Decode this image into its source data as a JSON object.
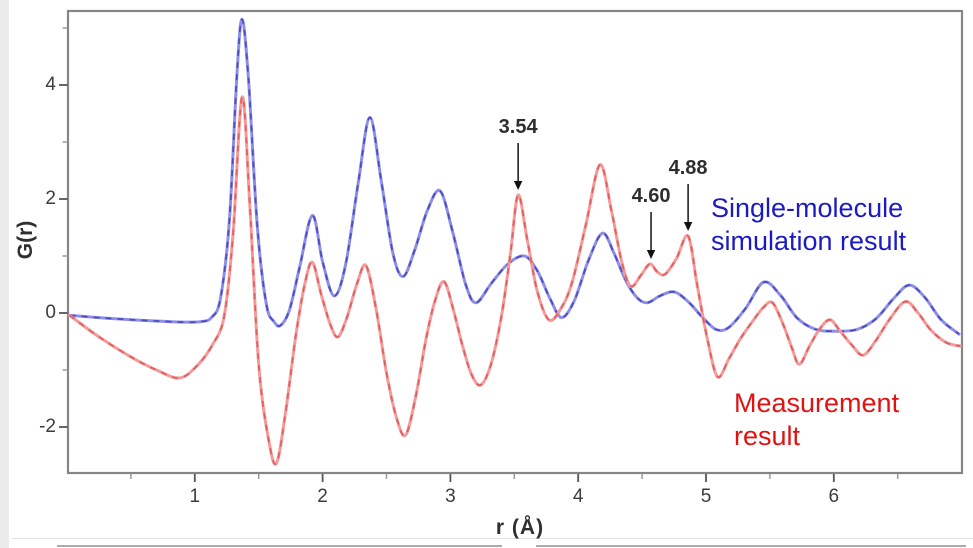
{
  "chart_data": {
    "type": "line",
    "title": "",
    "xlabel": "r (Å)",
    "ylabel": "G(r)",
    "xlim": [
      0,
      7
    ],
    "ylim": [
      -2.8,
      5.3
    ],
    "grid": false,
    "x_ticks_major": [
      1,
      2,
      3,
      4,
      5,
      6
    ],
    "x_ticks_minor": [
      0.5,
      1.5,
      2.5,
      3.5,
      4.5,
      5.5,
      6.5
    ],
    "y_ticks_major": [
      4,
      2,
      0,
      -2
    ],
    "y_ticks_minor": [
      5,
      3,
      1,
      -1
    ],
    "legend_position": "inside-right",
    "annotations": [
      {
        "label": "3.54",
        "x": 3.53,
        "y": 2.07
      },
      {
        "label": "4.60",
        "x": 4.57,
        "y": 0.86
      },
      {
        "label": "4.88",
        "x": 4.86,
        "y": 1.35
      }
    ],
    "series": [
      {
        "id": "simulation",
        "name": "Single-molecule simulation result",
        "base_color": "#8e8ee6",
        "dash_color": "#4a4ac5",
        "points": [
          [
            0.02,
            -0.04
          ],
          [
            0.3,
            -0.09
          ],
          [
            0.6,
            -0.13
          ],
          [
            0.9,
            -0.16
          ],
          [
            1.05,
            -0.15
          ],
          [
            1.13,
            -0.08
          ],
          [
            1.2,
            0.25
          ],
          [
            1.27,
            1.6
          ],
          [
            1.33,
            4.2
          ],
          [
            1.37,
            5.15
          ],
          [
            1.42,
            4.1
          ],
          [
            1.49,
            1.5
          ],
          [
            1.56,
            0.15
          ],
          [
            1.62,
            -0.15
          ],
          [
            1.67,
            -0.22
          ],
          [
            1.74,
            0.05
          ],
          [
            1.82,
            0.8
          ],
          [
            1.92,
            1.71
          ],
          [
            2.0,
            0.9
          ],
          [
            2.09,
            0.3
          ],
          [
            2.18,
            0.85
          ],
          [
            2.28,
            2.3
          ],
          [
            2.37,
            3.43
          ],
          [
            2.46,
            2.3
          ],
          [
            2.55,
            1.05
          ],
          [
            2.63,
            0.64
          ],
          [
            2.72,
            1.1
          ],
          [
            2.82,
            1.8
          ],
          [
            2.92,
            2.14
          ],
          [
            3.02,
            1.4
          ],
          [
            3.12,
            0.5
          ],
          [
            3.2,
            0.18
          ],
          [
            3.32,
            0.52
          ],
          [
            3.45,
            0.86
          ],
          [
            3.58,
            1.0
          ],
          [
            3.68,
            0.74
          ],
          [
            3.78,
            0.25
          ],
          [
            3.87,
            -0.08
          ],
          [
            3.97,
            0.22
          ],
          [
            4.08,
            0.92
          ],
          [
            4.19,
            1.4
          ],
          [
            4.28,
            1.05
          ],
          [
            4.37,
            0.58
          ],
          [
            4.46,
            0.27
          ],
          [
            4.54,
            0.18
          ],
          [
            4.64,
            0.3
          ],
          [
            4.75,
            0.37
          ],
          [
            4.86,
            0.2
          ],
          [
            4.97,
            -0.07
          ],
          [
            5.08,
            -0.29
          ],
          [
            5.18,
            -0.25
          ],
          [
            5.31,
            0.08
          ],
          [
            5.45,
            0.54
          ],
          [
            5.58,
            0.32
          ],
          [
            5.71,
            -0.08
          ],
          [
            5.85,
            -0.28
          ],
          [
            6.0,
            -0.32
          ],
          [
            6.18,
            -0.29
          ],
          [
            6.33,
            -0.1
          ],
          [
            6.47,
            0.26
          ],
          [
            6.59,
            0.49
          ],
          [
            6.71,
            0.28
          ],
          [
            6.84,
            -0.12
          ],
          [
            6.98,
            -0.37
          ]
        ]
      },
      {
        "id": "measurement",
        "name": "Measurement result",
        "base_color": "#f49a9a",
        "dash_color": "#e25d5d",
        "points": [
          [
            0.02,
            -0.04
          ],
          [
            0.25,
            -0.42
          ],
          [
            0.5,
            -0.77
          ],
          [
            0.7,
            -1.0
          ],
          [
            0.88,
            -1.14
          ],
          [
            1.02,
            -0.92
          ],
          [
            1.14,
            -0.55
          ],
          [
            1.23,
            -0.05
          ],
          [
            1.3,
            1.4
          ],
          [
            1.37,
            3.79
          ],
          [
            1.43,
            1.9
          ],
          [
            1.5,
            -0.9
          ],
          [
            1.58,
            -2.25
          ],
          [
            1.64,
            -2.63
          ],
          [
            1.71,
            -1.75
          ],
          [
            1.79,
            -0.4
          ],
          [
            1.86,
            0.5
          ],
          [
            1.92,
            0.89
          ],
          [
            1.99,
            0.32
          ],
          [
            2.06,
            -0.2
          ],
          [
            2.12,
            -0.42
          ],
          [
            2.19,
            -0.08
          ],
          [
            2.27,
            0.52
          ],
          [
            2.34,
            0.83
          ],
          [
            2.42,
            0.05
          ],
          [
            2.5,
            -1.05
          ],
          [
            2.58,
            -1.85
          ],
          [
            2.65,
            -2.14
          ],
          [
            2.73,
            -1.45
          ],
          [
            2.81,
            -0.45
          ],
          [
            2.88,
            0.22
          ],
          [
            2.95,
            0.55
          ],
          [
            3.02,
            0.08
          ],
          [
            3.1,
            -0.62
          ],
          [
            3.17,
            -1.1
          ],
          [
            3.24,
            -1.26
          ],
          [
            3.32,
            -0.88
          ],
          [
            3.4,
            -0.05
          ],
          [
            3.47,
            1.05
          ],
          [
            3.53,
            2.07
          ],
          [
            3.6,
            1.3
          ],
          [
            3.68,
            0.38
          ],
          [
            3.77,
            -0.12
          ],
          [
            3.86,
            0.06
          ],
          [
            3.95,
            0.52
          ],
          [
            4.06,
            1.55
          ],
          [
            4.17,
            2.6
          ],
          [
            4.26,
            1.8
          ],
          [
            4.34,
            0.9
          ],
          [
            4.41,
            0.47
          ],
          [
            4.49,
            0.66
          ],
          [
            4.56,
            0.86
          ],
          [
            4.62,
            0.72
          ],
          [
            4.68,
            0.68
          ],
          [
            4.77,
            0.96
          ],
          [
            4.86,
            1.35
          ],
          [
            4.93,
            0.5
          ],
          [
            5.01,
            -0.45
          ],
          [
            5.09,
            -1.12
          ],
          [
            5.18,
            -0.8
          ],
          [
            5.27,
            -0.45
          ],
          [
            5.36,
            -0.16
          ],
          [
            5.45,
            0.1
          ],
          [
            5.52,
            0.18
          ],
          [
            5.6,
            -0.18
          ],
          [
            5.67,
            -0.6
          ],
          [
            5.73,
            -0.9
          ],
          [
            5.81,
            -0.58
          ],
          [
            5.89,
            -0.28
          ],
          [
            5.97,
            -0.12
          ],
          [
            6.05,
            -0.32
          ],
          [
            6.14,
            -0.56
          ],
          [
            6.23,
            -0.74
          ],
          [
            6.33,
            -0.48
          ],
          [
            6.44,
            -0.1
          ],
          [
            6.56,
            0.2
          ],
          [
            6.66,
            0.0
          ],
          [
            6.76,
            -0.3
          ],
          [
            6.88,
            -0.52
          ],
          [
            6.99,
            -0.58
          ]
        ]
      }
    ]
  },
  "legend": {
    "simulation": {
      "line1": "Single-molecule",
      "line2": "simulation result",
      "color": "#1b1bc0"
    },
    "measurement": {
      "line1": "Measurement",
      "line2": "result",
      "color": "#e01212"
    }
  },
  "style_colors": {
    "frame": "#868686",
    "tick_major": "#555555",
    "tick_minor": "#9a9a9a",
    "annotation_arrow": "#222222"
  }
}
